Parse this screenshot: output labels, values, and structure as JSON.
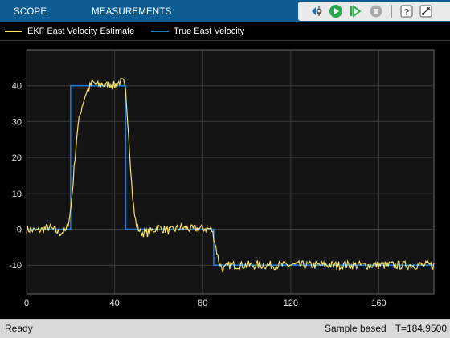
{
  "tabs": [
    {
      "label": "SCOPE"
    },
    {
      "label": "MEASUREMENTS"
    }
  ],
  "toolbar": {
    "icons": [
      "signal-selection-icon",
      "run-icon",
      "step-forward-icon",
      "stop-icon",
      "help-icon",
      "expand-icon"
    ]
  },
  "colors": {
    "toolstrip": "#0d5d94",
    "estimate": "#f5e26a",
    "truth": "#1f77d4",
    "plot_bg": "#000000",
    "grid": "#3a3a3a"
  },
  "status": {
    "left": "Ready",
    "mode": "Sample based",
    "time": "T=184.9500"
  },
  "chart_data": {
    "type": "line",
    "xlim": [
      0,
      185
    ],
    "ylim": [
      -18,
      50
    ],
    "xticks": [
      0,
      40,
      80,
      120,
      160
    ],
    "yticks": [
      -10,
      0,
      10,
      20,
      30,
      40
    ],
    "grid": true,
    "legend_position": "top",
    "series": [
      {
        "name": "EKF East Velocity Estimate",
        "color": "#f5e26a",
        "x": [
          0,
          5,
          10,
          15,
          18,
          19,
          20,
          21,
          22,
          23,
          24,
          25,
          26,
          27,
          28,
          30,
          32,
          34,
          36,
          38,
          40,
          42,
          44,
          45,
          46,
          47,
          48,
          49,
          50,
          51,
          52,
          55,
          60,
          65,
          70,
          75,
          80,
          84,
          85,
          86,
          87,
          88,
          89,
          90,
          91,
          92,
          95,
          100,
          110,
          120,
          130,
          140,
          150,
          160,
          170,
          180,
          185
        ],
        "y": [
          0,
          -0.5,
          0.5,
          -1,
          -0.5,
          2,
          5,
          12,
          20,
          27,
          31,
          34,
          36,
          38,
          39,
          41,
          40,
          40.5,
          40,
          40.5,
          40,
          41,
          41,
          38,
          30,
          20,
          10,
          4,
          1,
          0,
          -1,
          -1,
          0.5,
          -0.5,
          0.5,
          0,
          0.3,
          0,
          -2,
          -5,
          -8,
          -10,
          -11,
          -11,
          -10.5,
          -10,
          -10,
          -10,
          -10,
          -10,
          -10,
          -10,
          -10,
          -10,
          -10,
          -10,
          -10
        ]
      },
      {
        "name": "True East Velocity",
        "color": "#1f77d4",
        "x": [
          0,
          20,
          20,
          45,
          45,
          85,
          85,
          185
        ],
        "y": [
          0,
          0,
          40,
          40,
          0,
          0,
          -10,
          -10
        ]
      }
    ]
  }
}
